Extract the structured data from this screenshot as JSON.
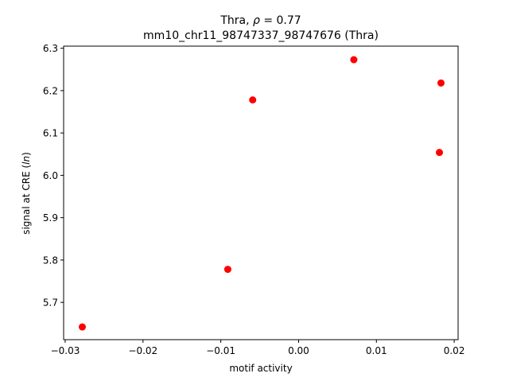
{
  "chart_data": {
    "type": "scatter",
    "title_line1": "Thra, ρ = 0.77",
    "title_line2": "mm10_chr11_98747337_98747676 (Thra)",
    "xlabel": "motif activity",
    "ylabel": "signal at CRE (ln)",
    "xlim": [
      -0.0302,
      0.0205
    ],
    "ylim": [
      5.612,
      6.305
    ],
    "xticks": [
      -0.03,
      -0.02,
      -0.01,
      0.0,
      0.01,
      0.02
    ],
    "xtick_labels": [
      "−0.03",
      "−0.02",
      "−0.01",
      "0.00",
      "0.01",
      "0.02"
    ],
    "yticks": [
      5.7,
      5.8,
      5.9,
      6.0,
      6.1,
      6.2,
      6.3
    ],
    "ytick_labels": [
      "5.7",
      "5.8",
      "5.9",
      "6.0",
      "6.1",
      "6.2",
      "6.3"
    ],
    "grid": false,
    "marker_color": "#ff0000",
    "points": [
      {
        "x": -0.0278,
        "y": 5.642
      },
      {
        "x": -0.0091,
        "y": 5.778
      },
      {
        "x": -0.0059,
        "y": 6.178
      },
      {
        "x": 0.0071,
        "y": 6.273
      },
      {
        "x": 0.0181,
        "y": 6.054
      },
      {
        "x": 0.0183,
        "y": 6.218
      }
    ]
  }
}
